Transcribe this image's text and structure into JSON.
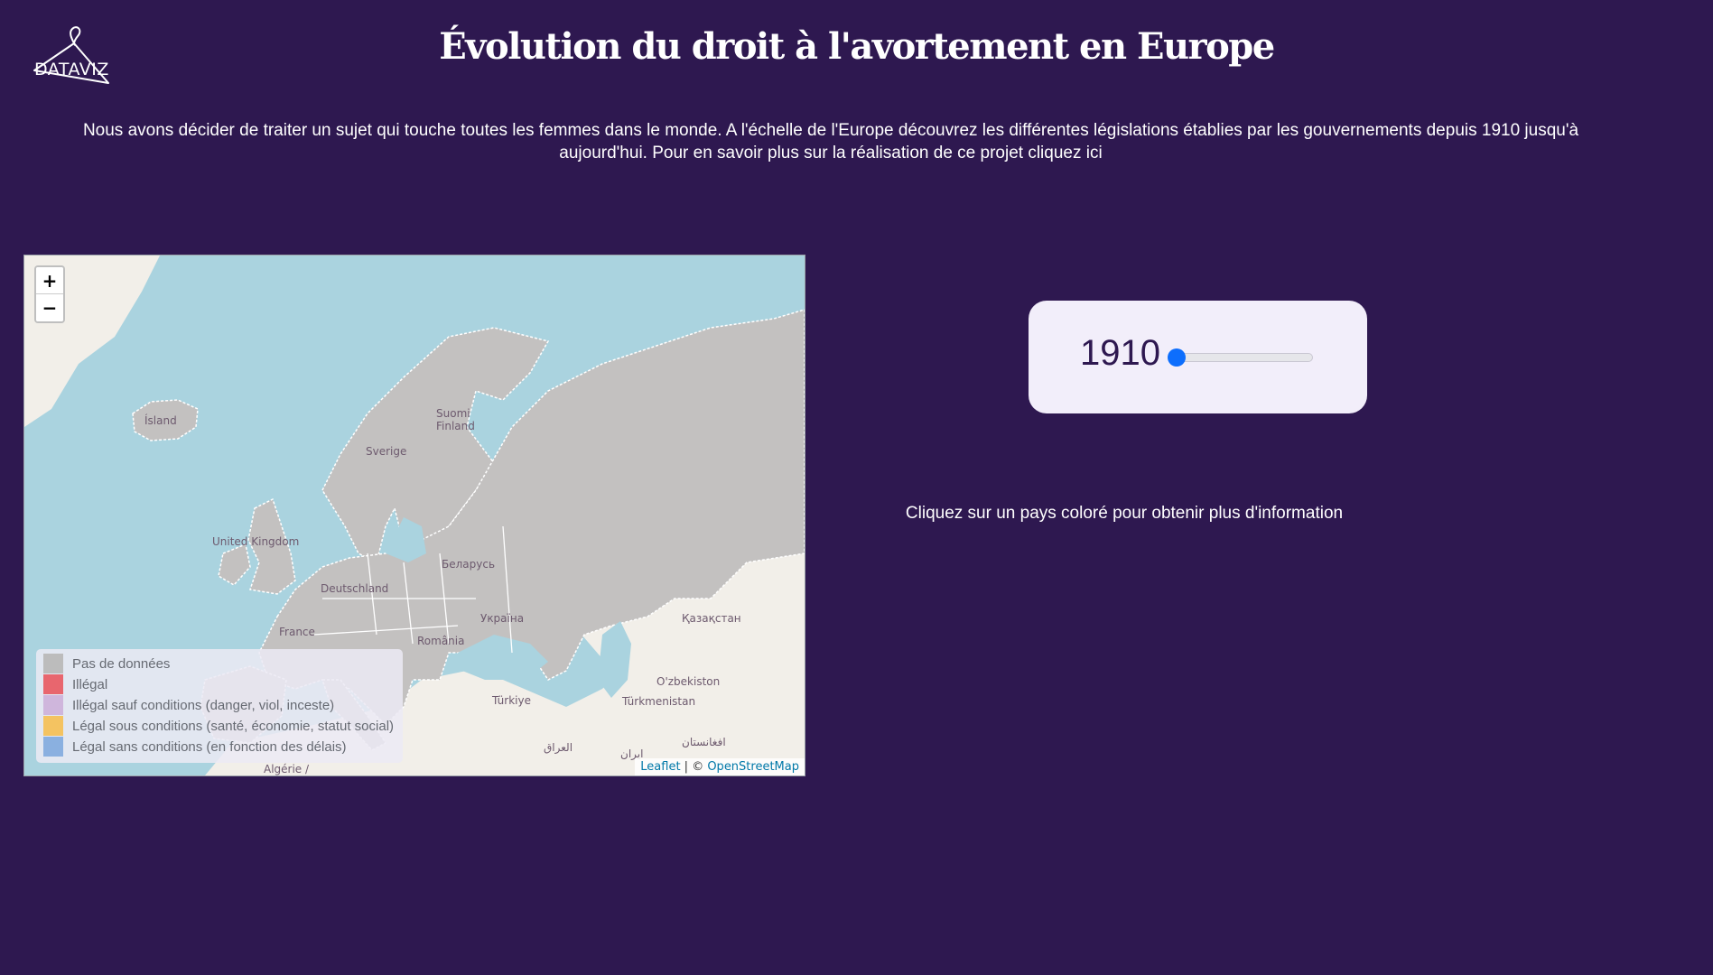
{
  "logo": {
    "text": "DATAVIZ",
    "icon": "hanger-icon"
  },
  "header": {
    "title": "Évolution du droit à l'avortement en Europe"
  },
  "intro": {
    "text": "Nous avons décider de traiter un sujet qui touche toutes les femmes dans le monde. A l'échelle de l'Europe découvrez les différentes législations établies par les gouvernements depuis 1910 jusqu'à aujourd'hui. Pour en savoir plus sur la réalisation de ce projet ",
    "link": "cliquez ici"
  },
  "map": {
    "zoom_in": "+",
    "zoom_out": "−",
    "labels": {
      "island": "Ísland",
      "suomi": "Suomi",
      "finland": "Finland",
      "sverige": "Sverige",
      "uk": "United Kingdom",
      "deutschland": "Deutschland",
      "belarus": "Беларусь",
      "ukraina": "Україна",
      "france": "France",
      "romania": "România",
      "kazakhstan": "Қазақстан",
      "turkiye": "Türkiye",
      "uzbekistan": "O'zbekiston",
      "turkmenistan": "Türkmenistan",
      "iraq": "العراق",
      "iran": "ایران",
      "afghanistan": "افغانستان",
      "algerie": "Algérie /"
    },
    "legend": [
      {
        "label": "Pas de données",
        "color": "#bcbcbc"
      },
      {
        "label": "Illégal",
        "color": "#e8666e"
      },
      {
        "label": "Illégal sauf conditions (danger, viol, inceste)",
        "color": "#cfb6dc"
      },
      {
        "label": "Légal sous conditions (santé, économie, statut social)",
        "color": "#f4c361"
      },
      {
        "label": "Légal sans conditions (en fonction des délais)",
        "color": "#8ab0e0"
      }
    ],
    "attribution": {
      "leaflet": "Leaflet",
      "separator": " | © ",
      "osm": "OpenStreetMap"
    },
    "colors": {
      "sea": "#aad3df",
      "land": "#f2efe9",
      "country_fill": "#c3c1c0",
      "border": "#ffffff"
    }
  },
  "slider": {
    "year": "1910",
    "min_year": 1910,
    "value": 1910
  },
  "hint": {
    "text": "Cliquez sur un pays coloré pour obtenir plus d'information"
  }
}
